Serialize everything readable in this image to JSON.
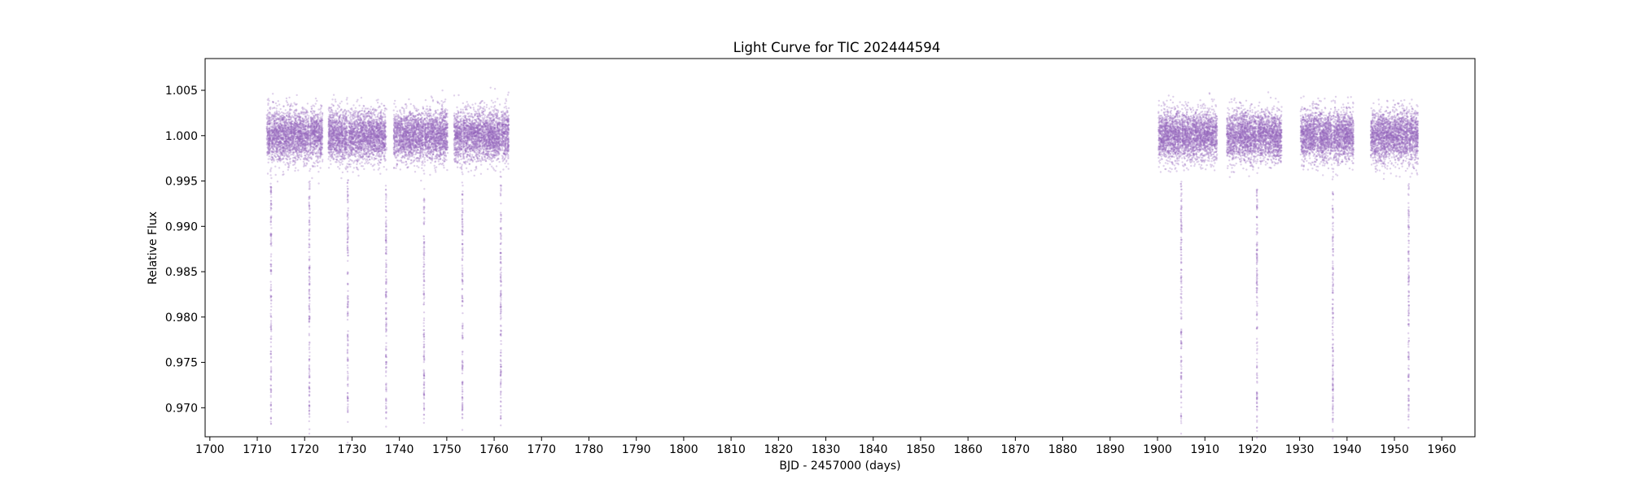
{
  "chart_data": {
    "type": "scatter",
    "title": "Light Curve for TIC 202444594",
    "xlabel": "BJD - 2457000 (days)",
    "ylabel": "Relative Flux",
    "xlim": [
      1699,
      1967
    ],
    "ylim": [
      0.9668,
      1.0085
    ],
    "x_ticks": [
      1700,
      1710,
      1720,
      1730,
      1740,
      1750,
      1760,
      1770,
      1780,
      1790,
      1800,
      1810,
      1820,
      1830,
      1840,
      1850,
      1860,
      1870,
      1880,
      1890,
      1900,
      1910,
      1920,
      1930,
      1940,
      1950,
      1960
    ],
    "y_ticks": [
      0.97,
      0.975,
      0.98,
      0.985,
      0.99,
      0.995,
      1.0,
      1.005
    ],
    "y_tick_labels": [
      "0.970",
      "0.975",
      "0.980",
      "0.985",
      "0.990",
      "0.995",
      "1.000",
      "1.005"
    ],
    "grid": false,
    "legend": "none",
    "point_color": "#9467bd",
    "point_opacity": 0.3,
    "series": [
      {
        "segments": [
          [
            1712.0,
            1723.8
          ],
          [
            1725.0,
            1737.3
          ],
          [
            1738.8,
            1750.2
          ],
          [
            1751.5,
            1763.1
          ],
          [
            1900.2,
            1912.6
          ],
          [
            1914.6,
            1926.2
          ],
          [
            1930.2,
            1941.4
          ],
          [
            1945.0,
            1955.0
          ]
        ],
        "baseline_flux": 1.0,
        "scatter_sigma": 0.0014,
        "transits": [
          1712.9,
          1721.0,
          1729.1,
          1737.2,
          1745.2,
          1753.3,
          1761.4,
          1905.0,
          1921.0,
          1937.0,
          1953.0
        ],
        "transit_depth": 0.0305
      }
    ]
  }
}
